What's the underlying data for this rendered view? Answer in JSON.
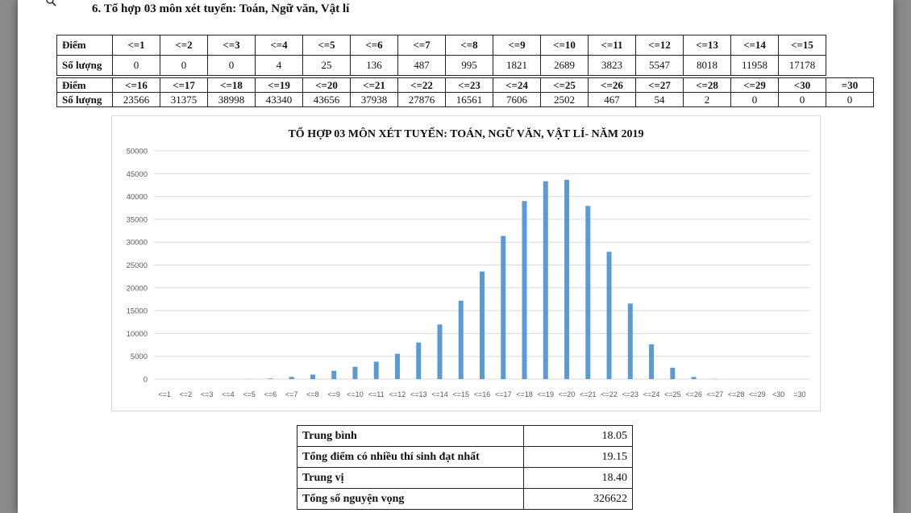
{
  "heading": "6. Tổ hợp 03 môn xét tuyển: Toán, Ngữ văn, Vật lí",
  "labels": {
    "diem": "Điểm",
    "so_luong": "Số lượng"
  },
  "table1": {
    "headers": [
      "<=1",
      "<=2",
      "<=3",
      "<=4",
      "<=5",
      "<=6",
      "<=7",
      "<=8",
      "<=9",
      "<=10",
      "<=11",
      "<=12",
      "<=13",
      "<=14",
      "<=15"
    ],
    "counts": [
      "0",
      "0",
      "0",
      "4",
      "25",
      "136",
      "487",
      "995",
      "1821",
      "2689",
      "3823",
      "5547",
      "8018",
      "11958",
      "17178"
    ]
  },
  "table2": {
    "headers": [
      "<=16",
      "<=17",
      "<=18",
      "<=19",
      "<=20",
      "<=21",
      "<=22",
      "<=23",
      "<=24",
      "<=25",
      "<=26",
      "<=27",
      "<=28",
      "<=29",
      "<30",
      "=30"
    ],
    "counts": [
      "23566",
      "31375",
      "38998",
      "43340",
      "43656",
      "37938",
      "27876",
      "16561",
      "7606",
      "2502",
      "467",
      "54",
      "2",
      "0",
      "0",
      "0"
    ]
  },
  "chart_data": {
    "type": "bar",
    "title": "TỔ HỢP 03 MÔN XÉT TUYỂN: TOÁN, NGỮ VĂN, VẬT LÍ- NĂM 2019",
    "categories": [
      "<=1",
      "<=2",
      "<=3",
      "<=4",
      "<=5",
      "<=6",
      "<=7",
      "<=8",
      "<=9",
      "<=10",
      "<=11",
      "<=12",
      "<=13",
      "<=14",
      "<=15",
      "<=16",
      "<=17",
      "<=18",
      "<=19",
      "<=20",
      "<=21",
      "<=22",
      "<=23",
      "<=24",
      "<=25",
      "<=26",
      "<=27",
      "<=28",
      "<=29",
      "<30",
      "=30"
    ],
    "values": [
      0,
      0,
      0,
      4,
      25,
      136,
      487,
      995,
      1821,
      2689,
      3823,
      5547,
      8018,
      11958,
      17178,
      23566,
      31375,
      38998,
      43340,
      43656,
      37938,
      27876,
      16561,
      7606,
      2502,
      467,
      54,
      2,
      0,
      0,
      0
    ],
    "ylim": [
      0,
      50000
    ],
    "yticks": [
      "0",
      "5000",
      "10000",
      "15000",
      "20000",
      "25000",
      "30000",
      "35000",
      "40000",
      "45000",
      "50000"
    ],
    "grid": true,
    "legend": "none",
    "bar_color": "#5b9bd5"
  },
  "stats": [
    {
      "label": "Trung bình",
      "value": "18.05"
    },
    {
      "label": "Tổng điểm có nhiều thí sinh đạt nhất",
      "value": "19.15"
    },
    {
      "label": "Trung vị",
      "value": "18.40"
    },
    {
      "label": "Tổng số nguyện vọng",
      "value": "326622"
    }
  ],
  "colors": {
    "bar": "#5b9bd5",
    "grid": "#d9d9d9",
    "axis_text": "#595959",
    "backdrop": "#8a8a8a"
  }
}
